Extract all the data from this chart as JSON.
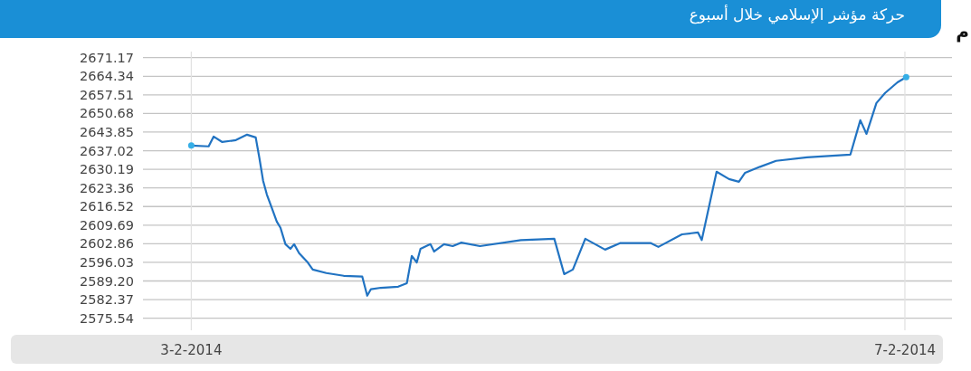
{
  "chart_data": {
    "type": "line",
    "title": "حركة مؤشر الإسلامي خلال أسبوع",
    "annotations": [
      "م"
    ],
    "x": [
      "2014-02-03T00:00",
      "2014-02-03T02:20",
      "2014-02-03T03:00",
      "2014-02-03T04:10",
      "2014-02-03T06:00",
      "2014-02-03T07:30",
      "2014-02-03T08:40",
      "2014-02-03T09:10",
      "2014-02-03T09:40",
      "2014-02-03T10:10",
      "2014-02-03T10:50",
      "2014-02-03T11:30",
      "2014-02-03T12:00",
      "2014-02-03T12:40",
      "2014-02-03T13:20",
      "2014-02-03T13:50",
      "2014-02-03T14:30",
      "2014-02-03T15:40",
      "2014-02-03T16:20",
      "2014-02-03T18:10",
      "2014-02-03T20:30",
      "2014-02-03T23:00",
      "2014-02-03T23:40",
      "2014-02-04T00:10",
      "2014-02-04T01:30",
      "2014-02-04T03:50",
      "2014-02-04T05:00",
      "2014-02-04T05:40",
      "2014-02-04T06:20",
      "2014-02-04T06:50",
      "2014-02-04T08:10",
      "2014-02-04T08:40",
      "2014-02-04T10:00",
      "2014-02-04T11:10",
      "2014-02-04T12:20",
      "2014-02-04T14:50",
      "2014-02-04T20:20",
      "2014-02-05T00:50",
      "2014-02-05T02:10",
      "2014-02-05T03:20",
      "2014-02-05T05:00",
      "2014-02-05T07:40",
      "2014-02-05T09:40",
      "2014-02-05T13:50",
      "2014-02-05T14:50",
      "2014-02-05T18:00",
      "2014-02-05T20:10",
      "2014-02-05T20:40",
      "2014-02-05T22:40",
      "2014-02-06T00:20",
      "2014-02-06T01:40",
      "2014-02-06T02:30",
      "2014-02-06T04:30",
      "2014-02-06T06:40",
      "2014-02-06T10:50",
      "2014-02-06T16:40",
      "2014-02-06T18:00",
      "2014-02-06T18:50",
      "2014-02-06T20:10",
      "2014-02-06T21:20",
      "2014-02-06T23:00",
      "2014-02-07T00:10"
    ],
    "series": [
      {
        "color": "#2173c2",
        "values": [
          2638.9,
          2638.6,
          2642.2,
          2640.2,
          2640.9,
          2642.9,
          2641.9,
          2634.2,
          2625.9,
          2620.9,
          2616.0,
          2611.0,
          2608.7,
          2602.7,
          2601.0,
          2602.7,
          2599.4,
          2596.0,
          2593.4,
          2592.1,
          2591.1,
          2590.8,
          2583.8,
          2586.2,
          2586.7,
          2587.1,
          2588.4,
          2598.4,
          2596.0,
          2601.0,
          2602.7,
          2600.0,
          2602.7,
          2602.0,
          2603.3,
          2602.0,
          2604.2,
          2604.7,
          2591.7,
          2593.4,
          2604.7,
          2600.7,
          2603.1,
          2603.1,
          2601.7,
          2606.3,
          2607.0,
          2604.2,
          2629.3,
          2626.6,
          2625.6,
          2628.9,
          2631.1,
          2633.3,
          2634.6,
          2635.6,
          2648.2,
          2643.2,
          2654.5,
          2658.2,
          2662.1,
          2664.0
        ]
      },
      {
        "type": "scatter",
        "color": "#35aee6",
        "x": [
          "2014-02-03T00:00",
          "2014-02-07T00:10"
        ],
        "values": [
          2638.9,
          2664.0
        ]
      }
    ],
    "xlim": [
      "2014-02-02T17:30",
      "2014-02-07T06:20"
    ],
    "xticks": [
      {
        "value": "2014-02-03",
        "label": "3-2-2014"
      },
      {
        "value": "2014-02-07",
        "label": "7-2-2014"
      }
    ],
    "ylim": [
      2571.1,
      2673.4
    ],
    "yticks": [
      {
        "value": 2575.54,
        "label": "2575.54"
      },
      {
        "value": 2582.37,
        "label": "2582.37"
      },
      {
        "value": 2589.2,
        "label": "2589.20"
      },
      {
        "value": 2596.03,
        "label": "2596.03"
      },
      {
        "value": 2602.86,
        "label": "2602.86"
      },
      {
        "value": 2609.69,
        "label": "2609.69"
      },
      {
        "value": 2616.52,
        "label": "2616.52"
      },
      {
        "value": 2623.36,
        "label": "2623.36"
      },
      {
        "value": 2630.19,
        "label": "2630.19"
      },
      {
        "value": 2637.02,
        "label": "2637.02"
      },
      {
        "value": 2643.85,
        "label": "2643.85"
      },
      {
        "value": 2650.68,
        "label": "2650.68"
      },
      {
        "value": 2657.51,
        "label": "2657.51"
      },
      {
        "value": 2664.34,
        "label": "2664.34"
      },
      {
        "value": 2671.17,
        "label": "2671.17"
      }
    ],
    "grid": true,
    "line_style": "solid"
  }
}
